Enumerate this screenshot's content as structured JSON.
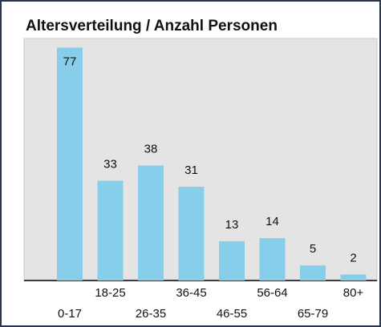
{
  "chart_data": {
    "type": "bar",
    "title": "Altersverteilung / Anzahl Personen",
    "categories": [
      "0-17",
      "18-25",
      "26-35",
      "36-45",
      "46-55",
      "56-64",
      "65-79",
      "80+"
    ],
    "values": [
      77,
      33,
      38,
      31,
      13,
      14,
      5,
      2
    ],
    "color": "#87ceeb",
    "ylim": [
      0,
      80
    ]
  }
}
